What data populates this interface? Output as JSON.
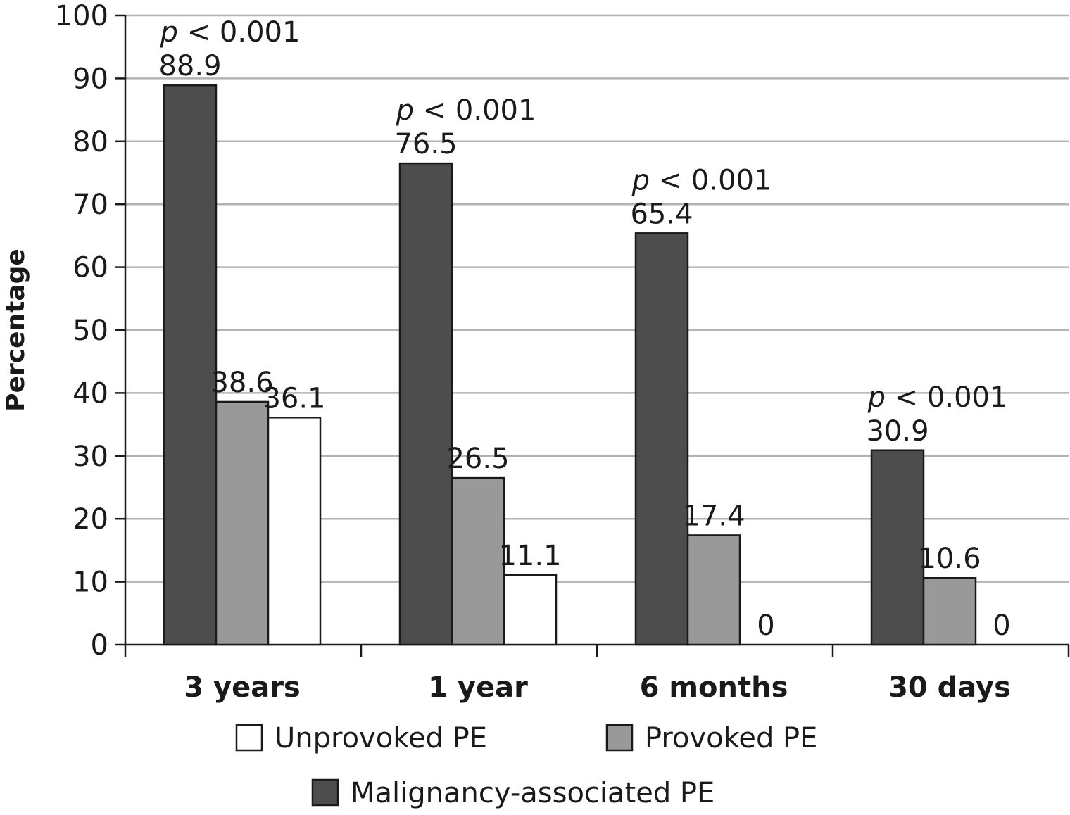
{
  "chart_data": {
    "type": "bar",
    "ylabel": "Percentage",
    "xlabel": "",
    "ylim": [
      0,
      100
    ],
    "yticks": [
      0,
      10,
      20,
      30,
      40,
      50,
      60,
      70,
      80,
      90,
      100
    ],
    "grid": true,
    "legend_position": "bottom",
    "categories": [
      "3 years",
      "1 year",
      "6 months",
      "30 days"
    ],
    "series": [
      {
        "name": "Malignancy-associated PE",
        "color": "#4d4d4d",
        "values": [
          88.9,
          76.5,
          65.4,
          30.9
        ],
        "labels": [
          "88.9",
          "76.5",
          "65.4",
          "30.9"
        ]
      },
      {
        "name": "Provoked PE",
        "color": "#999999",
        "values": [
          38.6,
          26.5,
          17.4,
          10.6
        ],
        "labels": [
          "38.6",
          "26.5",
          "17.4",
          "10.6"
        ]
      },
      {
        "name": "Unprovoked PE",
        "color": "#ffffff",
        "values": [
          36.1,
          11.1,
          0,
          0
        ],
        "labels": [
          "36.1",
          "11.1",
          "0",
          "0"
        ]
      }
    ],
    "annotations": [
      {
        "category": "3 years",
        "italic": "p",
        "rest": " < 0.001"
      },
      {
        "category": "1 year",
        "italic": "p",
        "rest": " < 0.001"
      },
      {
        "category": "6 months",
        "italic": "p",
        "rest": " < 0.001"
      },
      {
        "category": "30 days",
        "italic": "p",
        "rest": " < 0.001"
      }
    ],
    "legend_order": [
      "Unprovoked PE",
      "Provoked PE",
      "Malignancy-associated PE"
    ]
  }
}
